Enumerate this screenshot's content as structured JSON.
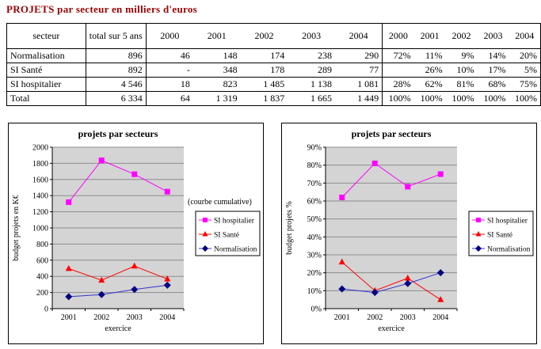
{
  "page": {
    "title": "PROJETS par secteur en milliers d'euros",
    "title_color": "#990000"
  },
  "table": {
    "header": {
      "secteur": "secteur",
      "total": "total sur 5 ans",
      "years_abs": [
        "2000",
        "2001",
        "2002",
        "2003",
        "2004"
      ],
      "years_pct": [
        "2000",
        "2001",
        "2002",
        "2003",
        "2004"
      ]
    },
    "rows": [
      {
        "secteur": "Normalisation",
        "total": "896",
        "abs": [
          "46",
          "148",
          "174",
          "238",
          "290"
        ],
        "pct": [
          "72%",
          "11%",
          "9%",
          "14%",
          "20%"
        ]
      },
      {
        "secteur": "SI Santé",
        "total": "892",
        "abs": [
          "-",
          "348",
          "178",
          "289",
          "77"
        ],
        "pct": [
          "",
          "26%",
          "10%",
          "17%",
          "5%"
        ]
      },
      {
        "secteur": "SI hospitalier",
        "total": "4 546",
        "abs": [
          "18",
          "823",
          "1 485",
          "1 138",
          "1 081"
        ],
        "pct": [
          "28%",
          "62%",
          "81%",
          "68%",
          "75%"
        ]
      },
      {
        "secteur": "Total",
        "total": "6 334",
        "abs": [
          "64",
          "1 319",
          "1 837",
          "1 665",
          "1 449"
        ],
        "pct": [
          "100%",
          "100%",
          "100%",
          "100%",
          "100%"
        ]
      }
    ]
  },
  "chart_data": [
    {
      "type": "line",
      "title": "projets par secteurs",
      "xlabel": "exercice",
      "ylabel": "budget projets en K€",
      "categories": [
        "2001",
        "2002",
        "2003",
        "2004"
      ],
      "ylim": [
        0,
        2000
      ],
      "ytick_step": 200,
      "ytick_format": "plain",
      "grid": true,
      "legend_position": "right",
      "annotation": "(courbe cumulative)",
      "plot_bg": "#D4D4D4",
      "series": [
        {
          "name": "SI hospitalier",
          "values": [
            1319,
            1837,
            1665,
            1449
          ],
          "color": "#FF00FF",
          "marker": "square"
        },
        {
          "name": "SI Santé",
          "values": [
            496,
            352,
            527,
            367
          ],
          "color": "#FF0000",
          "marker": "triangle"
        },
        {
          "name": "Normalisation",
          "values": [
            148,
            174,
            238,
            290
          ],
          "color": "#3333CC",
          "marker": "diamond",
          "marker_color": "#000080"
        }
      ]
    },
    {
      "type": "line",
      "title": "projets par secteurs",
      "xlabel": "exercice",
      "ylabel": "budget projets %",
      "categories": [
        "2001",
        "2002",
        "2003",
        "2004"
      ],
      "ylim": [
        0,
        90
      ],
      "ytick_step": 10,
      "ytick_format": "percent",
      "grid": true,
      "legend_position": "right",
      "annotation": "",
      "plot_bg": "#D4D4D4",
      "series": [
        {
          "name": "SI hospitalier",
          "values": [
            62,
            81,
            68,
            75
          ],
          "color": "#FF00FF",
          "marker": "square"
        },
        {
          "name": "SI Santé",
          "values": [
            26,
            10,
            17,
            5
          ],
          "color": "#FF0000",
          "marker": "triangle"
        },
        {
          "name": "Normalisation",
          "values": [
            11,
            9,
            14,
            20
          ],
          "color": "#3333CC",
          "marker": "diamond",
          "marker_color": "#000080"
        }
      ]
    }
  ]
}
